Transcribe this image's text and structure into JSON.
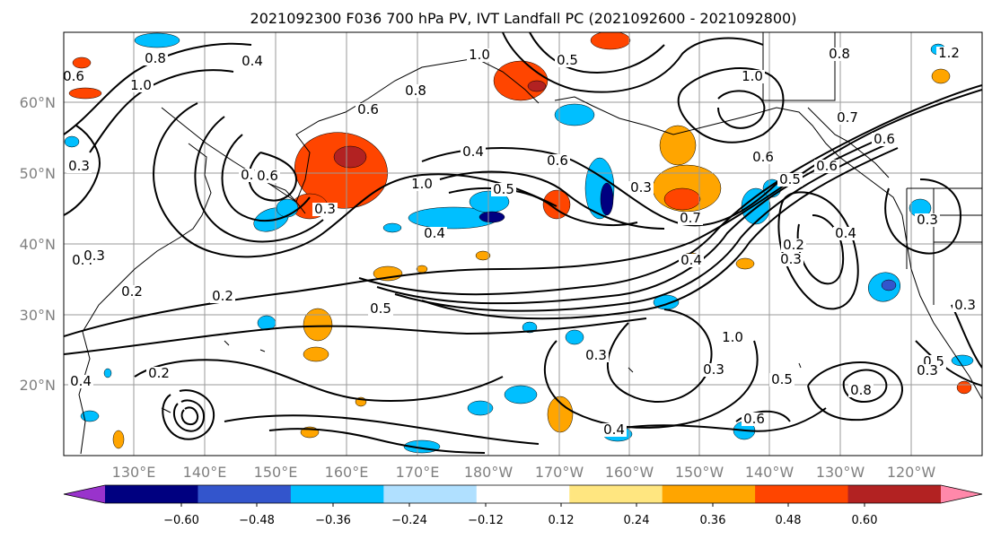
{
  "chart_data": {
    "type": "heatmap",
    "title": "2021092300 F036 700 hPa PV, IVT Landfall PC (2021092600 - 2021092800)",
    "x_ticks": [
      "130°E",
      "140°E",
      "150°E",
      "160°E",
      "170°E",
      "180°W",
      "170°W",
      "160°W",
      "150°W",
      "140°W",
      "130°W",
      "120°W"
    ],
    "y_ticks": [
      "20°N",
      "30°N",
      "40°N",
      "50°N",
      "60°N"
    ],
    "colorbar": {
      "ticks": [
        -0.6,
        -0.48,
        -0.36,
        -0.24,
        -0.12,
        0.12,
        0.24,
        0.36,
        0.48,
        0.6
      ],
      "tick_labels": [
        "−0.60",
        "−0.48",
        "−0.36",
        "−0.24",
        "−0.12",
        "0.12",
        "0.24",
        "0.36",
        "0.48",
        "0.60"
      ],
      "colors": [
        "#9933cc",
        "#000080",
        "#3355cc",
        "#00bfff",
        "#b0e0ff",
        "#ffffff",
        "#ffe680",
        "#ffa500",
        "#ff4500",
        "#b22222",
        "#ff88aa"
      ],
      "extend": "both"
    },
    "contour_labels": [
      "0.4",
      "1.0",
      "0.8",
      "0.5",
      "0.6",
      "1.0",
      "1.2",
      "0.8",
      "0.7",
      "0.6",
      "1.0",
      "0.8",
      "1.0",
      "0.7",
      "0.6",
      "0.3",
      "0.5",
      "0.4",
      "0.6",
      "0.3",
      "0.7",
      "0.6",
      "0.5",
      "0.6",
      "0.4",
      "0.3",
      "0.4",
      "0.3",
      "0.2",
      "0.2",
      "0.5",
      "0.6",
      "0.3",
      "0.4",
      "0.2",
      "0.3",
      "0.4",
      "0.3",
      "0.3",
      "1.0",
      "0.3",
      "0.5",
      "0.8",
      "0.4",
      "0.6",
      "0.5",
      "0.3",
      "0.2",
      "0.4"
    ],
    "grid": true,
    "map": "North Pacific coastlines"
  }
}
